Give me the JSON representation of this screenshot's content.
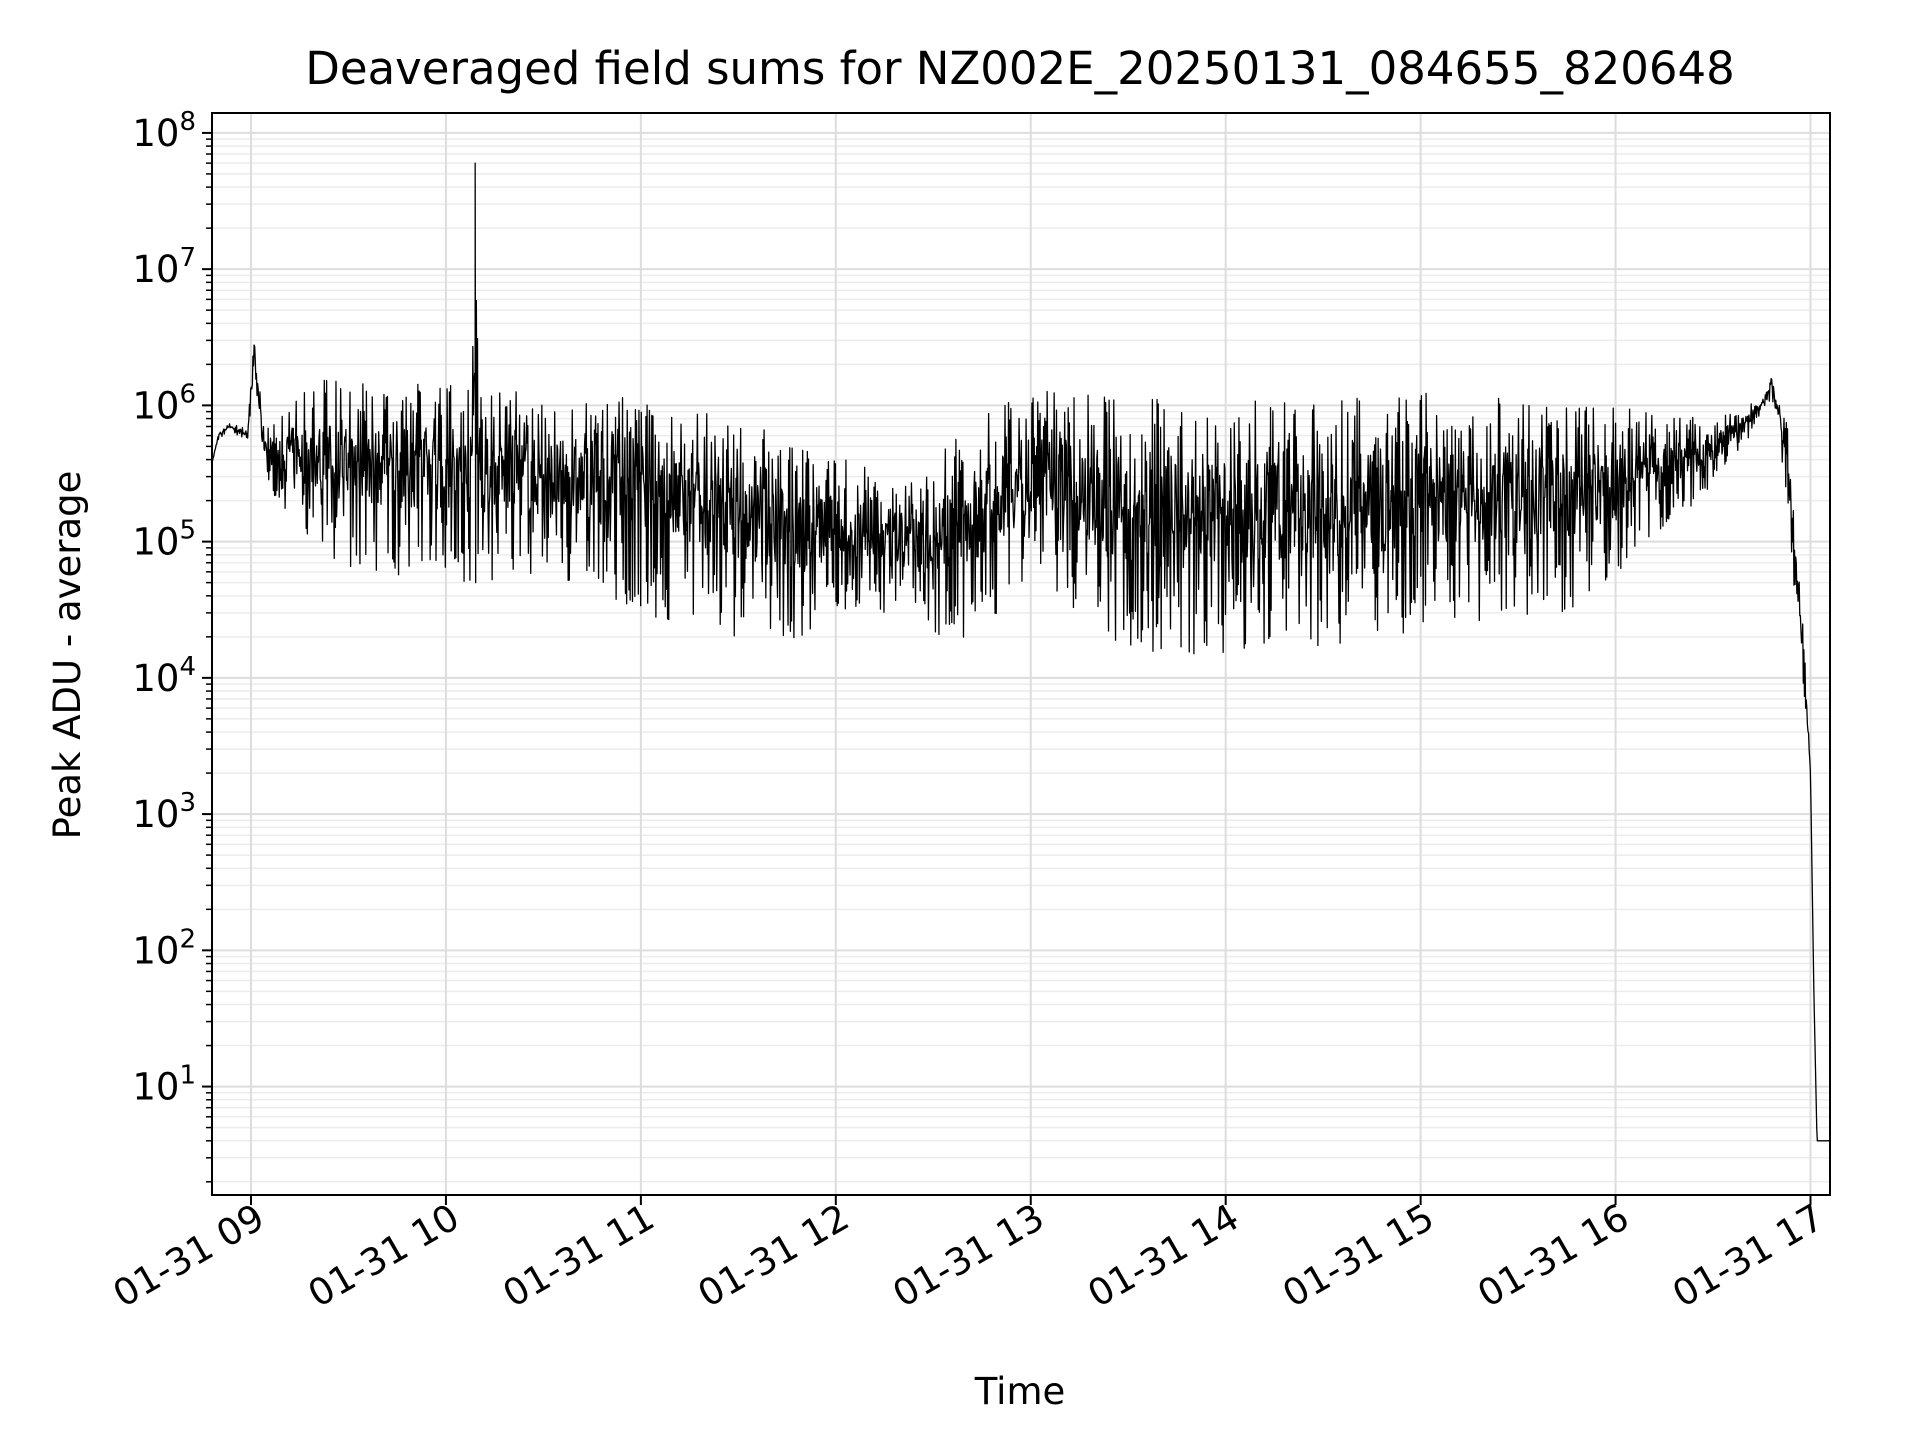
{
  "chart_data": {
    "type": "line",
    "title": "Deaveraged field sums for NZ002E_20250131_084655_820648",
    "xlabel": "Time",
    "ylabel": "Peak ADU - average",
    "yscale": "log",
    "ylim": [
      1.6,
      140000000
    ],
    "xlim": [
      "2025-01-31 08:48",
      "2025-01-31 17:06"
    ],
    "x_ticks": [
      {
        "value": "2025-01-31 09:00",
        "label": "01-31 09"
      },
      {
        "value": "2025-01-31 10:00",
        "label": "01-31 10"
      },
      {
        "value": "2025-01-31 11:00",
        "label": "01-31 11"
      },
      {
        "value": "2025-01-31 12:00",
        "label": "01-31 12"
      },
      {
        "value": "2025-01-31 13:00",
        "label": "01-31 13"
      },
      {
        "value": "2025-01-31 14:00",
        "label": "01-31 14"
      },
      {
        "value": "2025-01-31 15:00",
        "label": "01-31 15"
      },
      {
        "value": "2025-01-31 16:00",
        "label": "01-31 16"
      },
      {
        "value": "2025-01-31 17:00",
        "label": "01-31 17"
      }
    ],
    "y_ticks": [
      {
        "value": 10,
        "base": "10",
        "exp": "1"
      },
      {
        "value": 100,
        "base": "10",
        "exp": "2"
      },
      {
        "value": 1000,
        "base": "10",
        "exp": "3"
      },
      {
        "value": 10000,
        "base": "10",
        "exp": "4"
      },
      {
        "value": 100000,
        "base": "10",
        "exp": "5"
      },
      {
        "value": 1000000,
        "base": "10",
        "exp": "6"
      },
      {
        "value": 10000000,
        "base": "10",
        "exp": "7"
      },
      {
        "value": 100000000,
        "base": "10",
        "exp": "8"
      }
    ],
    "grid": "major and minor",
    "line_color": "#000000",
    "series": [
      {
        "x": [
          "2025-01-31 08:48",
          "2025-01-31 08:50",
          "2025-01-31 08:53",
          "2025-01-31 08:56",
          "2025-01-31 08:59",
          "2025-01-31 09:00",
          "2025-01-31 09:01",
          "2025-01-31 09:02",
          "2025-01-31 09:03",
          "2025-01-31 09:04",
          "2025-01-31 09:06",
          "2025-01-31 09:08",
          "2025-01-31 09:10",
          "2025-01-31 09:12",
          "2025-01-31 09:15",
          "2025-01-31 09:18",
          "2025-01-31 09:20",
          "2025-01-31 09:22",
          "2025-01-31 09:25",
          "2025-01-31 09:28",
          "2025-01-31 09:30",
          "2025-01-31 09:35",
          "2025-01-31 09:40",
          "2025-01-31 09:45",
          "2025-01-31 09:50",
          "2025-01-31 09:55",
          "2025-01-31 10:00",
          "2025-01-31 10:05",
          "2025-01-31 10:08",
          "2025-01-31 10:09",
          "2025-01-31 10:10",
          "2025-01-31 10:15",
          "2025-01-31 10:20",
          "2025-01-31 10:30",
          "2025-01-31 10:40",
          "2025-01-31 10:50",
          "2025-01-31 11:00",
          "2025-01-31 11:10",
          "2025-01-31 11:20",
          "2025-01-31 11:30",
          "2025-01-31 11:40",
          "2025-01-31 11:50",
          "2025-01-31 12:00",
          "2025-01-31 12:10",
          "2025-01-31 12:20",
          "2025-01-31 12:30",
          "2025-01-31 12:40",
          "2025-01-31 12:50",
          "2025-01-31 13:00",
          "2025-01-31 13:10",
          "2025-01-31 13:20",
          "2025-01-31 13:30",
          "2025-01-31 13:40",
          "2025-01-31 13:50",
          "2025-01-31 14:00",
          "2025-01-31 14:10",
          "2025-01-31 14:20",
          "2025-01-31 14:30",
          "2025-01-31 14:40",
          "2025-01-31 14:50",
          "2025-01-31 15:00",
          "2025-01-31 15:10",
          "2025-01-31 15:20",
          "2025-01-31 15:30",
          "2025-01-31 15:40",
          "2025-01-31 15:50",
          "2025-01-31 16:00",
          "2025-01-31 16:10",
          "2025-01-31 16:20",
          "2025-01-31 16:30",
          "2025-01-31 16:40",
          "2025-01-31 16:45",
          "2025-01-31 16:48",
          "2025-01-31 16:50",
          "2025-01-31 16:52",
          "2025-01-31 16:54",
          "2025-01-31 16:56",
          "2025-01-31 16:58",
          "2025-01-31 17:00",
          "2025-01-31 17:01",
          "2025-01-31 17:02",
          "2025-01-31 17:04",
          "2025-01-31 17:06"
        ],
        "high": [
          380000,
          650000,
          750000,
          720000,
          650000,
          1600000,
          3500000,
          2000000,
          1200000,
          900000,
          800000,
          700000,
          900000,
          1100000,
          1300000,
          1400000,
          1500000,
          1550000,
          1600000,
          1500000,
          1500000,
          1500000,
          1450000,
          1500000,
          1550000,
          1500000,
          1450000,
          1400000,
          1400000,
          60000000,
          1350000,
          1350000,
          1300000,
          1300000,
          1250000,
          1200000,
          1100000,
          1000000,
          900000,
          800000,
          650000,
          500000,
          420000,
          350000,
          320000,
          400000,
          700000,
          1000000,
          1300000,
          1300000,
          1200000,
          1150000,
          1100000,
          1100000,
          1100000,
          1150000,
          1200000,
          1200000,
          1200000,
          1250000,
          1250000,
          1200000,
          1200000,
          1150000,
          1100000,
          1050000,
          1000000,
          900000,
          850000,
          800000,
          1000000,
          1100000,
          1800000,
          1150000,
          1000000,
          500000,
          90000,
          20000,
          2000,
          55,
          4,
          4,
          4
        ],
        "low": [
          380000,
          550000,
          650000,
          600000,
          550000,
          900000,
          1800000,
          1000000,
          400000,
          300000,
          250000,
          200000,
          180000,
          160000,
          120000,
          100000,
          90000,
          80000,
          70000,
          70000,
          65000,
          60000,
          60000,
          55000,
          55000,
          55000,
          52000,
          50000,
          50000,
          50000,
          50000,
          50000,
          50000,
          48000,
          45000,
          40000,
          30000,
          25000,
          22000,
          20000,
          19000,
          18000,
          30000,
          28000,
          25000,
          20000,
          18000,
          30000,
          50000,
          40000,
          20000,
          15000,
          14000,
          14000,
          15000,
          15000,
          16000,
          17000,
          18000,
          20000,
          22000,
          24000,
          25000,
          26000,
          28000,
          35000,
          50000,
          100000,
          150000,
          250000,
          500000,
          900000,
          1100000,
          700000,
          250000,
          60000,
          20000,
          8000,
          2000,
          55,
          4,
          4,
          4
        ]
      }
    ]
  }
}
